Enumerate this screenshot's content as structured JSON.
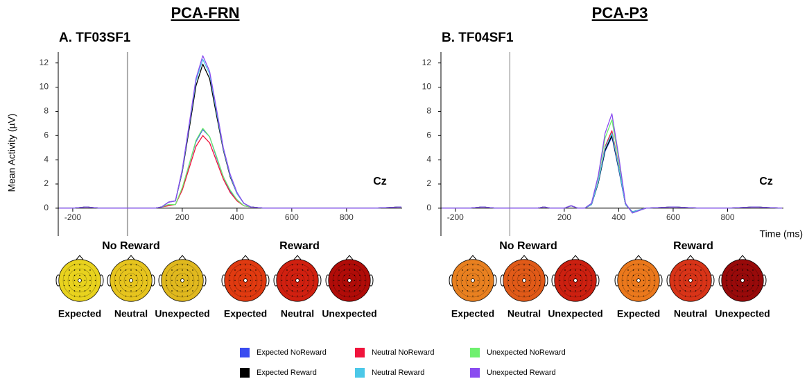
{
  "chart_data": [
    {
      "type": "line",
      "header": "PCA-FRN",
      "title": "A. TF03SF1",
      "y_label": "Mean Activity (µV)",
      "annotation": "Cz",
      "x": [
        -250,
        -200,
        -150,
        -100,
        -50,
        0,
        50,
        100,
        125,
        150,
        175,
        200,
        225,
        250,
        275,
        300,
        325,
        350,
        375,
        400,
        425,
        450,
        500,
        600,
        700,
        800,
        900,
        1000
      ],
      "xlim": [
        -253,
        1003
      ],
      "ylim": [
        -2.3,
        12.9
      ],
      "xticks": [
        -200,
        200,
        400,
        600,
        800
      ],
      "yticks": [
        0,
        2,
        4,
        6,
        8,
        10,
        12
      ],
      "series": [
        {
          "name": "Expected NoReward",
          "color": "#3a4cf0",
          "values": [
            0,
            0,
            0.1,
            0,
            0,
            0,
            0,
            0,
            0.1,
            0.3,
            0.3,
            1.6,
            3.6,
            5.5,
            6.5,
            5.9,
            4.2,
            2.6,
            1.4,
            0.7,
            0.2,
            0.1,
            0,
            0,
            0,
            0,
            0,
            0.1
          ]
        },
        {
          "name": "Neutral NoReward",
          "color": "#f0143c",
          "values": [
            0,
            0,
            0.1,
            0,
            0,
            0,
            0,
            0,
            0.1,
            0.2,
            0.3,
            1.5,
            3.3,
            5.1,
            6.0,
            5.4,
            3.9,
            2.4,
            1.3,
            0.6,
            0.2,
            0.1,
            0,
            0,
            0,
            0,
            0,
            0.1
          ]
        },
        {
          "name": "Unexpected NoReward",
          "color": "#6ef06e",
          "values": [
            0,
            0,
            0.1,
            0,
            0,
            0,
            0,
            0,
            0.1,
            0.3,
            0.3,
            1.7,
            3.6,
            5.6,
            6.6,
            5.9,
            4.3,
            2.6,
            1.5,
            0.7,
            0.2,
            0.1,
            0,
            0,
            0,
            0,
            0,
            0.1
          ]
        },
        {
          "name": "Expected Reward",
          "color": "#000000",
          "values": [
            0,
            0,
            0.1,
            0,
            0,
            0,
            0,
            0,
            0.1,
            0.5,
            0.6,
            3.0,
            6.5,
            10.1,
            11.9,
            10.7,
            7.7,
            4.8,
            2.6,
            1.2,
            0.4,
            0.1,
            0,
            0,
            0,
            0,
            0,
            0.1
          ]
        },
        {
          "name": "Neutral Reward",
          "color": "#4cc8e8",
          "values": [
            0,
            0,
            0.1,
            0,
            0,
            0,
            0,
            0,
            0.1,
            0.5,
            0.6,
            3.1,
            6.8,
            10.5,
            12.3,
            11.1,
            8.0,
            4.9,
            2.7,
            1.2,
            0.4,
            0.1,
            0,
            0,
            0,
            0,
            0,
            0.1
          ]
        },
        {
          "name": "Unexpected Reward",
          "color": "#8a4cf0",
          "values": [
            0,
            0,
            0.1,
            0,
            0,
            0,
            0,
            0,
            0.1,
            0.5,
            0.6,
            3.2,
            6.9,
            10.7,
            12.6,
            11.3,
            8.2,
            5.0,
            2.8,
            1.3,
            0.4,
            0.1,
            0,
            0,
            0,
            0,
            0,
            0.1
          ]
        }
      ],
      "topomaps": [
        {
          "label": "No Reward",
          "maps": [
            {
              "label": "Expected",
              "color": "#e8d21e"
            },
            {
              "label": "Neutral",
              "color": "#e6c41e"
            },
            {
              "label": "Unexpected",
              "color": "#e0b81e"
            }
          ]
        },
        {
          "label": "Reward",
          "maps": [
            {
              "label": "Expected",
              "color": "#e03a10"
            },
            {
              "label": "Neutral",
              "color": "#d02010"
            },
            {
              "label": "Unexpected",
              "color": "#b00c08"
            }
          ]
        }
      ]
    },
    {
      "type": "line",
      "header": "PCA-P3",
      "title": "B. TF04SF1",
      "x_label": "Time (ms)",
      "annotation": "Cz",
      "x": [
        -250,
        -200,
        -150,
        -100,
        -50,
        0,
        50,
        100,
        125,
        150,
        175,
        200,
        225,
        250,
        275,
        300,
        325,
        350,
        375,
        400,
        425,
        450,
        500,
        600,
        700,
        800,
        900,
        1000
      ],
      "xlim": [
        -253,
        1005
      ],
      "ylim": [
        -2.3,
        12.9
      ],
      "xticks": [
        -200,
        200,
        400,
        600,
        800
      ],
      "yticks": [
        0,
        2,
        4,
        6,
        8,
        10,
        12
      ],
      "series": [
        {
          "values": [
            0,
            0,
            0,
            0.1,
            0,
            0,
            0,
            0,
            0.1,
            0,
            0,
            0,
            0.2,
            0,
            0,
            0.3,
            2.1,
            4.7,
            5.9,
            3.2,
            0.3,
            -0.3,
            0,
            0.1,
            0,
            0,
            0.1,
            0
          ]
        },
        {
          "values": [
            0,
            0,
            0,
            0.1,
            0,
            0,
            0,
            0,
            0.1,
            0,
            0,
            0,
            0.2,
            0,
            0,
            0.3,
            2.2,
            5.1,
            6.4,
            3.5,
            0.3,
            -0.3,
            0,
            0.1,
            0,
            0,
            0.1,
            0
          ]
        },
        {
          "values": [
            0,
            0,
            0,
            0.1,
            0,
            0,
            0,
            0,
            0.1,
            0,
            0,
            0,
            0.2,
            0,
            0,
            0.4,
            2.6,
            5.8,
            7.3,
            4.0,
            0.4,
            -0.4,
            0,
            0.1,
            0,
            0,
            0.1,
            0
          ]
        },
        {
          "values": [
            0,
            0,
            0,
            0.1,
            0,
            0,
            0,
            0,
            0.1,
            0,
            0,
            0,
            0.2,
            0,
            0,
            0.3,
            2.1,
            4.8,
            6.0,
            3.3,
            0.3,
            -0.3,
            0,
            0.1,
            0,
            0,
            0.1,
            0
          ]
        },
        {
          "values": [
            0,
            0,
            0,
            0.1,
            0,
            0,
            0,
            0,
            0.1,
            0,
            0,
            0,
            0.2,
            0,
            0,
            0.3,
            2.2,
            5.0,
            6.2,
            3.4,
            0.3,
            -0.3,
            0,
            0.1,
            0,
            0,
            0.1,
            0
          ]
        },
        {
          "values": [
            0,
            0,
            0,
            0.1,
            0,
            0,
            0,
            0,
            0.1,
            0,
            0,
            0,
            0.2,
            0,
            0,
            0.4,
            2.7,
            6.2,
            7.8,
            4.3,
            0.4,
            -0.4,
            0,
            0.1,
            0,
            0,
            0.1,
            0
          ]
        }
      ],
      "topomaps": [
        {
          "label": "No Reward",
          "maps": [
            {
              "label": "Expected",
              "color": "#e88020"
            },
            {
              "label": "Neutral",
              "color": "#e05a18"
            },
            {
              "label": "Unexpected",
              "color": "#cc2010"
            }
          ]
        },
        {
          "label": "Reward",
          "maps": [
            {
              "label": "Expected",
              "color": "#ea781c"
            },
            {
              "label": "Neutral",
              "color": "#d83418"
            },
            {
              "label": "Unexpected",
              "color": "#980a0a"
            }
          ]
        }
      ]
    }
  ]
}
